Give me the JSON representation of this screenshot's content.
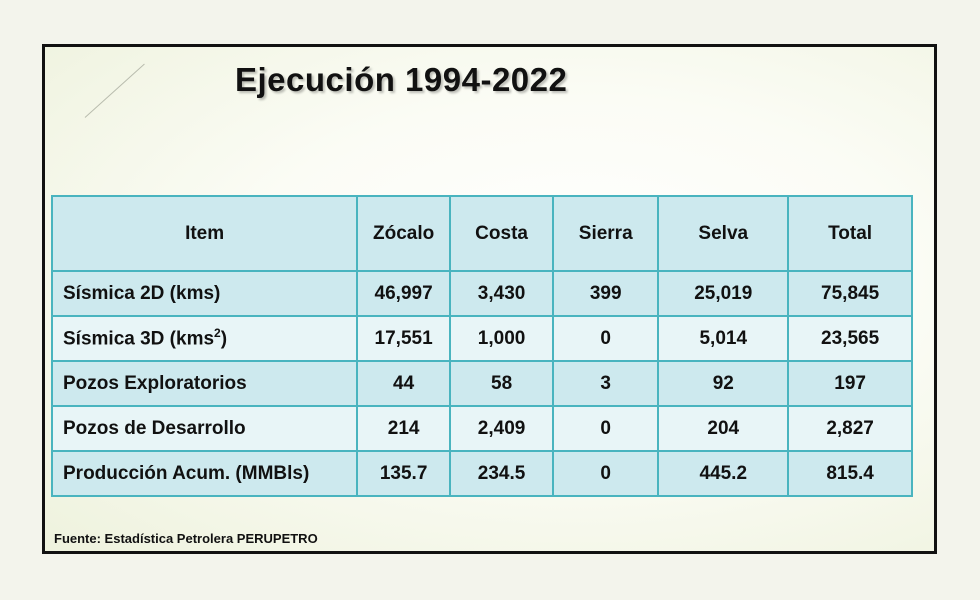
{
  "slide": {
    "title": "Ejecución 1994-2022",
    "source": "Fuente: Estadística Petrolera PERUPETRO"
  },
  "table": {
    "headers": [
      "Item",
      "Zócalo",
      "Costa",
      "Sierra",
      "Selva",
      "Total"
    ],
    "rows": [
      {
        "label": "Sísmica 2D (kms)",
        "label_sup": "",
        "label_close": "",
        "values": [
          "46,997",
          "3,430",
          "399",
          "25,019",
          "75,845"
        ]
      },
      {
        "label": "Sísmica 3D (kms",
        "label_sup": "2",
        "label_close": ")",
        "values": [
          "17,551",
          "1,000",
          "0",
          "5,014",
          "23,565"
        ]
      },
      {
        "label": "Pozos Exploratorios",
        "label_sup": "",
        "label_close": "",
        "values": [
          "44",
          "58",
          "3",
          "92",
          "197"
        ]
      },
      {
        "label": "Pozos de Desarrollo",
        "label_sup": "",
        "label_close": "",
        "values": [
          "214",
          "2,409",
          "0",
          "204",
          "2,827"
        ]
      },
      {
        "label": "Producción Acum. (MMBls)",
        "label_sup": "",
        "label_close": "",
        "values": [
          "135.7",
          "234.5",
          "0",
          "445.2",
          "815.4"
        ]
      }
    ]
  }
}
